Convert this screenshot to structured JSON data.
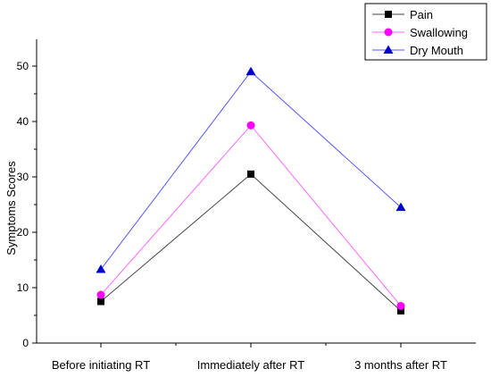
{
  "chart_data": {
    "type": "line",
    "categories": [
      "Before initiating RT",
      "Immediately after RT",
      "3 months after RT"
    ],
    "ylabel": "Symptoms Scores",
    "ylim": [
      0,
      55
    ],
    "yticks": [
      0,
      10,
      20,
      30,
      40,
      50
    ],
    "grid": false,
    "legend_position": "top-right",
    "series": [
      {
        "name": "Pain",
        "values": [
          7.5,
          30.5,
          5.8
        ],
        "color": "#000000",
        "line_color": "#444444",
        "marker": "square"
      },
      {
        "name": "Swallowing",
        "values": [
          8.7,
          39.3,
          6.7
        ],
        "color": "#ff00ff",
        "line_color": "#ff66ff",
        "marker": "circle"
      },
      {
        "name": "Dry Mouth",
        "values": [
          13.3,
          49.0,
          24.5
        ],
        "color": "#0000cc",
        "line_color": "#5555ff",
        "marker": "triangle"
      }
    ]
  }
}
